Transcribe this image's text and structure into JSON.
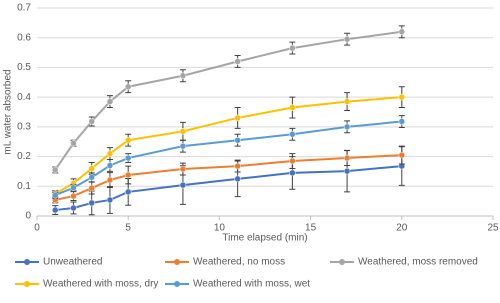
{
  "chart_data": {
    "type": "line",
    "x_label": "Time elapsed (min)",
    "y_label": "mL water absorbed",
    "x": [
      1,
      2,
      3,
      4,
      5,
      8,
      11,
      14,
      17,
      20
    ],
    "xlim": [
      0,
      25
    ],
    "xticks": [
      0,
      5,
      10,
      15,
      20,
      25
    ],
    "ylim": [
      0,
      0.7
    ],
    "yticks": [
      0,
      0.1,
      0.2,
      0.3,
      0.4,
      0.5,
      0.6,
      0.7
    ],
    "grid": true,
    "legend": "bottom",
    "series": [
      {
        "name": "Unweathered",
        "color": "#4472c4",
        "values": [
          0.02,
          0.027,
          0.044,
          0.054,
          0.081,
          0.104,
          0.125,
          0.145,
          0.151,
          0.168
        ],
        "errors": [
          0.015,
          0.02,
          0.04,
          0.045,
          0.045,
          0.065,
          0.06,
          0.055,
          0.07,
          0.065
        ]
      },
      {
        "name": "Weathered, no moss",
        "color": "#ed7d31",
        "values": [
          0.054,
          0.067,
          0.094,
          0.121,
          0.138,
          0.158,
          0.168,
          0.185,
          0.195,
          0.205
        ],
        "errors": [
          0.01,
          0.015,
          0.02,
          0.025,
          0.03,
          0.02,
          0.02,
          0.025,
          0.025,
          0.03
        ]
      },
      {
        "name": "Weathered, moss removed",
        "color": "#a5a5a5",
        "values": [
          0.155,
          0.245,
          0.318,
          0.385,
          0.435,
          0.472,
          0.52,
          0.565,
          0.595,
          0.62
        ],
        "errors": [
          0.01,
          0.01,
          0.015,
          0.02,
          0.02,
          0.02,
          0.02,
          0.02,
          0.02,
          0.02
        ]
      },
      {
        "name": "Weathered with moss, dry",
        "color": "#ffc000",
        "values": [
          0.075,
          0.11,
          0.16,
          0.21,
          0.255,
          0.285,
          0.33,
          0.365,
          0.385,
          0.4
        ],
        "errors": [
          0.01,
          0.015,
          0.02,
          0.02,
          0.02,
          0.03,
          0.035,
          0.035,
          0.03,
          0.035
        ]
      },
      {
        "name": "Weathered with moss, wet",
        "color": "#5b9bd5",
        "values": [
          0.07,
          0.095,
          0.13,
          0.17,
          0.195,
          0.235,
          0.255,
          0.275,
          0.3,
          0.318
        ],
        "errors": [
          0.01,
          0.01,
          0.015,
          0.02,
          0.015,
          0.02,
          0.02,
          0.02,
          0.02,
          0.02
        ]
      }
    ]
  }
}
